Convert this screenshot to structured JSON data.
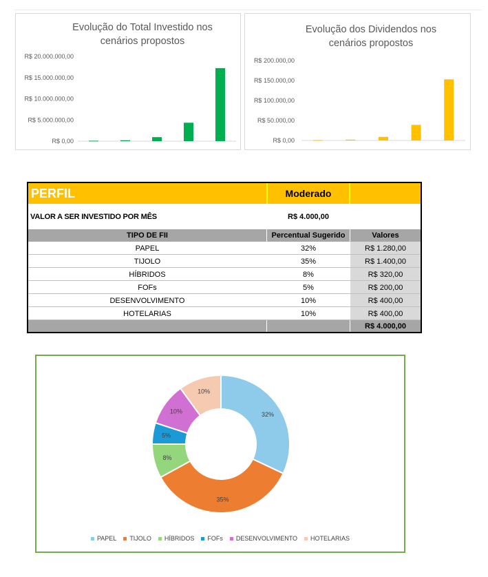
{
  "chart_data": [
    {
      "type": "bar",
      "title": "Evolução do Total Investido nos cenários propostos",
      "categories": [
        "",
        "",
        "",
        "",
        ""
      ],
      "values": [
        100000,
        210000,
        950000,
        4350000,
        17250000
      ],
      "ylim": [
        0,
        20000000
      ],
      "yticks": [
        "R$ 0,00",
        "R$ 5.000.000,00",
        "R$ 10.000.000,00",
        "R$ 15.000.000,00",
        "R$ 20.000.000,00"
      ],
      "color": "#00b050",
      "grid": false
    },
    {
      "type": "bar",
      "title": "Evolução dos Dividendos nos cenários propostos",
      "categories": [
        "",
        "",
        "",
        "",
        ""
      ],
      "values": [
        1000,
        2100,
        9000,
        39000,
        153000
      ],
      "ylim": [
        0,
        200000
      ],
      "yticks": [
        "R$ 0,00",
        "R$ 50.000,00",
        "R$ 100.000,00",
        "R$ 150.000,00",
        "R$ 200.000,00"
      ],
      "color": "#ffc000",
      "grid": false
    },
    {
      "type": "pie",
      "donut": true,
      "categories": [
        "PAPEL",
        "TIJOLO",
        "HÍBRIDOS",
        "FOFs",
        "DESENVOLVIMENTO",
        "HOTELARIAS"
      ],
      "values": [
        32,
        35,
        8,
        5,
        10,
        10
      ],
      "labels": [
        "32%",
        "35%",
        "8%",
        "5%",
        "10%",
        "10%"
      ],
      "colors": [
        "#8ecbea",
        "#ed7d31",
        "#93d67b",
        "#1b9ad6",
        "#d070d3",
        "#f6c9b1"
      ],
      "legend_position": "bottom"
    }
  ],
  "table": {
    "perfil_label": "PERFIL",
    "perfil_value": "Moderado",
    "invest_label": "VALOR A SER INVESTIDO POR MÊS",
    "invest_value": "R$ 4.000,00",
    "headers": [
      "TIPO DE FII",
      "Percentual Sugerido",
      "Valores"
    ],
    "rows": [
      {
        "tipo": "PAPEL",
        "pct": "32%",
        "valor": "R$ 1.280,00"
      },
      {
        "tipo": "TIJOLO",
        "pct": "35%",
        "valor": "R$ 1.400,00"
      },
      {
        "tipo": "HÍBRIDOS",
        "pct": "8%",
        "valor": "R$ 320,00"
      },
      {
        "tipo": "FOFs",
        "pct": "5%",
        "valor": "R$ 200,00"
      },
      {
        "tipo": "DESENVOLVIMENTO",
        "pct": "10%",
        "valor": "R$ 400,00"
      },
      {
        "tipo": "HOTELARIAS",
        "pct": "10%",
        "valor": "R$ 400,00"
      }
    ],
    "total": "R$ 4.000,00"
  }
}
